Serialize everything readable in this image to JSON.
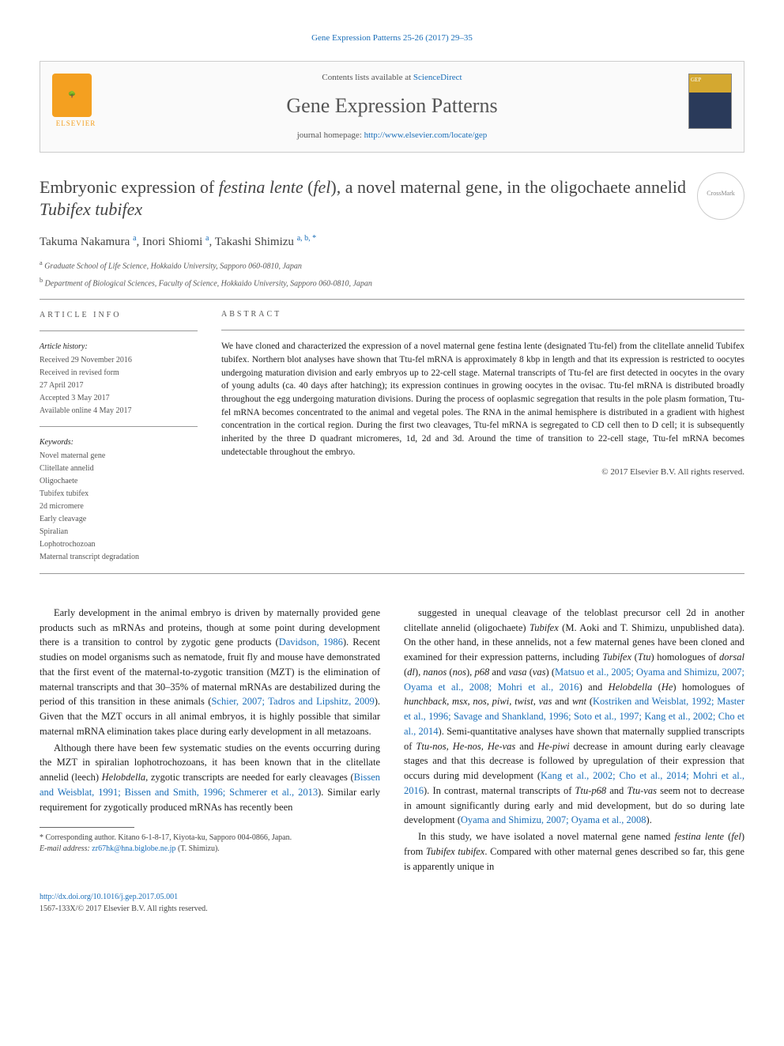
{
  "top_link": {
    "journal": "Gene Expression Patterns",
    "vol": "25-26 (2017) 29–35"
  },
  "header": {
    "contents_prefix": "Contents lists available at ",
    "contents_link": "ScienceDirect",
    "journal_name": "Gene Expression Patterns",
    "homepage_prefix": "journal homepage: ",
    "homepage_url": "http://www.elsevier.com/locate/gep",
    "elsevier_label": "ELSEVIER",
    "cover_label": "GEP"
  },
  "title": {
    "pre": "Embryonic expression of ",
    "it1": "festina lente",
    "mid1": " (",
    "it2": "fel",
    "mid2": "), a novel maternal gene, in the oligochaete annelid ",
    "it3": "Tubifex tubifex"
  },
  "crossmark": "CrossMark",
  "authors": {
    "a1": "Takuma Nakamura",
    "s1": "a",
    "a2": "Inori Shiomi",
    "s2": "a",
    "a3": "Takashi Shimizu",
    "s3": "a, b, *"
  },
  "affiliations": {
    "a": "Graduate School of Life Science, Hokkaido University, Sapporo 060-0810, Japan",
    "b": "Department of Biological Sciences, Faculty of Science, Hokkaido University, Sapporo 060-0810, Japan"
  },
  "info": {
    "heading": "ARTICLE INFO",
    "history_label": "Article history:",
    "received": "Received 29 November 2016",
    "revised1": "Received in revised form",
    "revised2": "27 April 2017",
    "accepted": "Accepted 3 May 2017",
    "online": "Available online 4 May 2017",
    "keywords_label": "Keywords:",
    "keywords": [
      "Novel maternal gene",
      "Clitellate annelid",
      "Oligochaete",
      "Tubifex tubifex",
      "2d micromere",
      "Early cleavage",
      "Spiralian",
      "Lophotrochozoan",
      "Maternal transcript degradation"
    ]
  },
  "abstract": {
    "heading": "ABSTRACT",
    "text": "We have cloned and characterized the expression of a novel maternal gene festina lente (designated Ttu-fel) from the clitellate annelid Tubifex tubifex. Northern blot analyses have shown that Ttu-fel mRNA is approximately 8 kbp in length and that its expression is restricted to oocytes undergoing maturation division and early embryos up to 22-cell stage. Maternal transcripts of Ttu-fel are first detected in oocytes in the ovary of young adults (ca. 40 days after hatching); its expression continues in growing oocytes in the ovisac. Ttu-fel mRNA is distributed broadly throughout the egg undergoing maturation divisions. During the process of ooplasmic segregation that results in the pole plasm formation, Ttu-fel mRNA becomes concentrated to the animal and vegetal poles. The RNA in the animal hemisphere is distributed in a gradient with highest concentration in the cortical region. During the first two cleavages, Ttu-fel mRNA is segregated to CD cell then to D cell; it is subsequently inherited by the three D quadrant micromeres, 1d, 2d and 3d. Around the time of transition to 22-cell stage, Ttu-fel mRNA becomes undetectable throughout the embryo.",
    "copyright": "© 2017 Elsevier B.V. All rights reserved."
  },
  "body": {
    "col1": {
      "p1": {
        "t1": "Early development in the animal embryo is driven by maternally provided gene products such as mRNAs and proteins, though at some point during development there is a transition to control by zygotic gene products (",
        "l1": "Davidson, 1986",
        "t2": "). Recent studies on model organisms such as nematode, fruit fly and mouse have demonstrated that the first event of the maternal-to-zygotic transition (MZT) is the elimination of maternal transcripts and that 30–35% of maternal mRNAs are destabilized during the period of this transition in these animals (",
        "l2": "Schier, 2007; Tadros and Lipshitz, 2009",
        "t3": "). Given that the MZT occurs in all animal embryos, it is highly possible that similar maternal mRNA elimination takes place during early development in all metazoans."
      },
      "p2": {
        "t1": "Although there have been few systematic studies on the events occurring during the MZT in spiralian lophotrochozoans, it has been known that in the clitellate annelid (leech) ",
        "it1": "Helobdella",
        "t2": ", zygotic transcripts are needed for early cleavages (",
        "l1": "Bissen and Weisblat, 1991; Bissen and Smith, 1996; Schmerer et al., 2013",
        "t3": "). Similar early requirement for zygotically produced mRNAs has recently been"
      }
    },
    "col2": {
      "p1": {
        "t1": "suggested in unequal cleavage of the teloblast precursor cell 2d in another clitellate annelid (oligochaete) ",
        "it1": "Tubifex",
        "t2": " (M. Aoki and T. Shimizu, unpublished data). On the other hand, in these annelids, not a few maternal genes have been cloned and examined for their expression patterns, including ",
        "it2": "Tubifex",
        "t3": " (",
        "it3": "Ttu",
        "t4": ") homologues of ",
        "it4": "dorsal",
        "t5": " (",
        "it5": "dl",
        "t6": "), ",
        "it6": "nanos",
        "t7": " (",
        "it7": "nos",
        "t8": "), ",
        "it8": "p68",
        "t9": " and ",
        "it9": "vasa",
        "t10": " (",
        "it10": "vas",
        "t11": ") (",
        "l1": "Matsuo et al., 2005; Oyama and Shimizu, 2007; Oyama et al., 2008; Mohri et al., 2016",
        "t12": ") and ",
        "it11": "Helobdella",
        "t13": " (",
        "it12": "He",
        "t14": ") homologues of ",
        "it13": "hunchback, msx, nos, piwi, twist, vas",
        "t15": " and ",
        "it14": "wnt",
        "t16": " (",
        "l2": "Kostriken and Weisblat, 1992; Master et al., 1996; Savage and Shankland, 1996; Soto et al., 1997; Kang et al., 2002; Cho et al., 2014",
        "t17": "). Semi-quantitative analyses have shown that maternally supplied transcripts of ",
        "it15": "Ttu-nos, He-nos, He-vas",
        "t18": " and ",
        "it16": "He-piwi",
        "t19": " decrease in amount during early cleavage stages and that this decrease is followed by upregulation of their expression that occurs during mid development (",
        "l3": "Kang et al., 2002; Cho et al., 2014; Mohri et al., 2016",
        "t20": "). In contrast, maternal transcripts of ",
        "it17": "Ttu-p68",
        "t21": " and ",
        "it18": "Ttu-vas",
        "t22": " seem not to decrease in amount significantly during early and mid development, but do so during late development (",
        "l4": "Oyama and Shimizu, 2007; Oyama et al., 2008",
        "t23": ")."
      },
      "p2": {
        "t1": "In this study, we have isolated a novel maternal gene named ",
        "it1": "festina lente",
        "t2": " (",
        "it2": "fel",
        "t3": ") from ",
        "it3": "Tubifex tubifex",
        "t4": ". Compared with other maternal genes described so far, this gene is apparently unique in"
      }
    }
  },
  "footnote": {
    "star": "* Corresponding author. Kitano 6-1-8-17, Kiyota-ku, Sapporo 004-0866, Japan.",
    "email_label": "E-mail address: ",
    "email": "zr67hk@hna.biglobe.ne.jp",
    "email_after": " (T. Shimizu)."
  },
  "footer": {
    "doi": "http://dx.doi.org/10.1016/j.gep.2017.05.001",
    "copyright": "1567-133X/© 2017 Elsevier B.V. All rights reserved."
  },
  "colors": {
    "link": "#1a6eb8",
    "elsevier_orange": "#f4a020",
    "text": "#222222",
    "muted": "#555555",
    "border": "#cccccc"
  }
}
